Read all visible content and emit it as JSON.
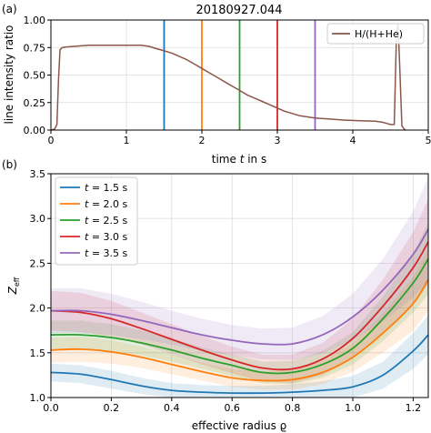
{
  "chart_data": [
    {
      "type": "line",
      "panel_label": "(a)",
      "title": "20180927.044",
      "xlabel_prefix": "time ",
      "xlabel_var": "t",
      "xlabel_suffix": " in s",
      "ylabel": "line intensity ratio",
      "xlim": [
        0,
        5
      ],
      "ylim": [
        0,
        1
      ],
      "xticks": [
        "0",
        "1",
        "2",
        "3",
        "4",
        "5"
      ],
      "yticks": [
        "0.00",
        "0.25",
        "0.50",
        "0.75",
        "1.00"
      ],
      "grid": true,
      "legend_position": "top-right",
      "series": [
        {
          "name": "H/(H+He)",
          "color": "#8c564b",
          "x": [
            0.0,
            0.05,
            0.08,
            0.1,
            0.12,
            0.15,
            0.2,
            0.3,
            0.5,
            0.8,
            1.0,
            1.2,
            1.3,
            1.4,
            1.5,
            1.6,
            1.7,
            1.8,
            1.9,
            2.0,
            2.1,
            2.2,
            2.3,
            2.4,
            2.5,
            2.6,
            2.7,
            2.8,
            2.9,
            3.0,
            3.1,
            3.2,
            3.3,
            3.4,
            3.5,
            3.7,
            3.9,
            4.1,
            4.3,
            4.4,
            4.45,
            4.5,
            4.55,
            4.58,
            4.6,
            4.62,
            4.65,
            4.68,
            4.7
          ],
          "y": [
            0.0,
            0.01,
            0.05,
            0.45,
            0.73,
            0.75,
            0.755,
            0.76,
            0.77,
            0.77,
            0.77,
            0.77,
            0.76,
            0.74,
            0.72,
            0.7,
            0.67,
            0.64,
            0.6,
            0.56,
            0.52,
            0.48,
            0.44,
            0.4,
            0.36,
            0.32,
            0.29,
            0.26,
            0.23,
            0.2,
            0.17,
            0.15,
            0.13,
            0.12,
            0.11,
            0.1,
            0.09,
            0.085,
            0.08,
            0.07,
            0.06,
            0.05,
            0.05,
            0.9,
            0.96,
            0.6,
            0.04,
            0.01,
            0.0
          ]
        }
      ],
      "markers": [
        {
          "x": 1.5,
          "color": "#1f77b4"
        },
        {
          "x": 2.0,
          "color": "#ff7f0e"
        },
        {
          "x": 2.5,
          "color": "#2ca02c"
        },
        {
          "x": 3.0,
          "color": "#d62728"
        },
        {
          "x": 3.5,
          "color": "#9467bd"
        }
      ]
    },
    {
      "type": "line",
      "panel_label": "(b)",
      "xlabel": "effective radius ϱ",
      "ylabel_main": "Z",
      "ylabel_sub": "eff",
      "xlim": [
        0,
        1.25
      ],
      "ylim": [
        1.0,
        3.5
      ],
      "xticks": [
        "0.0",
        "0.2",
        "0.4",
        "0.6",
        "0.8",
        "1.0",
        "1.2"
      ],
      "xtick_values": [
        0,
        0.2,
        0.4,
        0.6,
        0.8,
        1.0,
        1.2
      ],
      "yticks": [
        "1.0",
        "1.5",
        "2.0",
        "2.5",
        "3.0",
        "3.5"
      ],
      "ytick_values": [
        1.0,
        1.5,
        2.0,
        2.5,
        3.0,
        3.5
      ],
      "grid": true,
      "legend_position": "top-left",
      "x": [
        0.0,
        0.1,
        0.2,
        0.3,
        0.4,
        0.5,
        0.6,
        0.7,
        0.8,
        0.9,
        1.0,
        1.1,
        1.2,
        1.25
      ],
      "series": [
        {
          "name": "t = 1.5 s",
          "legend_var": "t",
          "legend_rest": " = 1.5 s",
          "color": "#1f77b4",
          "values": [
            1.28,
            1.26,
            1.2,
            1.13,
            1.08,
            1.06,
            1.05,
            1.05,
            1.06,
            1.08,
            1.12,
            1.25,
            1.52,
            1.7
          ],
          "band": [
            0.1,
            0.1,
            0.1,
            0.09,
            0.08,
            0.08,
            0.08,
            0.08,
            0.09,
            0.1,
            0.12,
            0.15,
            0.2,
            0.22
          ]
        },
        {
          "name": "t = 2.0 s",
          "legend_var": "t",
          "legend_rest": " = 2.0 s",
          "color": "#ff7f0e",
          "values": [
            1.53,
            1.54,
            1.51,
            1.45,
            1.37,
            1.29,
            1.22,
            1.19,
            1.2,
            1.28,
            1.45,
            1.72,
            2.05,
            2.32
          ],
          "band": [
            0.14,
            0.14,
            0.13,
            0.12,
            0.11,
            0.1,
            0.1,
            0.1,
            0.11,
            0.13,
            0.16,
            0.22,
            0.3,
            0.35
          ]
        },
        {
          "name": "t = 2.5 s",
          "legend_var": "t",
          "legend_rest": " = 2.5 s",
          "color": "#2ca02c",
          "values": [
            1.7,
            1.7,
            1.67,
            1.61,
            1.53,
            1.44,
            1.36,
            1.28,
            1.28,
            1.37,
            1.55,
            1.88,
            2.28,
            2.55
          ],
          "band": [
            0.16,
            0.16,
            0.15,
            0.14,
            0.13,
            0.12,
            0.12,
            0.12,
            0.13,
            0.15,
            0.18,
            0.25,
            0.33,
            0.4
          ]
        },
        {
          "name": "t = 3.0 s",
          "legend_var": "t",
          "legend_rest": " = 3.0 s",
          "color": "#d62728",
          "values": [
            1.97,
            1.95,
            1.88,
            1.77,
            1.65,
            1.53,
            1.42,
            1.33,
            1.32,
            1.43,
            1.66,
            2.02,
            2.45,
            2.74
          ],
          "band": [
            0.22,
            0.22,
            0.2,
            0.18,
            0.17,
            0.16,
            0.15,
            0.15,
            0.16,
            0.18,
            0.22,
            0.3,
            0.4,
            0.48
          ]
        },
        {
          "name": "t = 3.5 s",
          "legend_var": "t",
          "legend_rest": " = 3.5 s",
          "color": "#9467bd",
          "values": [
            1.97,
            1.97,
            1.93,
            1.86,
            1.78,
            1.7,
            1.64,
            1.6,
            1.6,
            1.7,
            1.9,
            2.2,
            2.6,
            2.88
          ],
          "band": [
            0.25,
            0.25,
            0.23,
            0.21,
            0.19,
            0.18,
            0.17,
            0.17,
            0.18,
            0.21,
            0.26,
            0.35,
            0.48,
            0.58
          ]
        }
      ]
    }
  ]
}
